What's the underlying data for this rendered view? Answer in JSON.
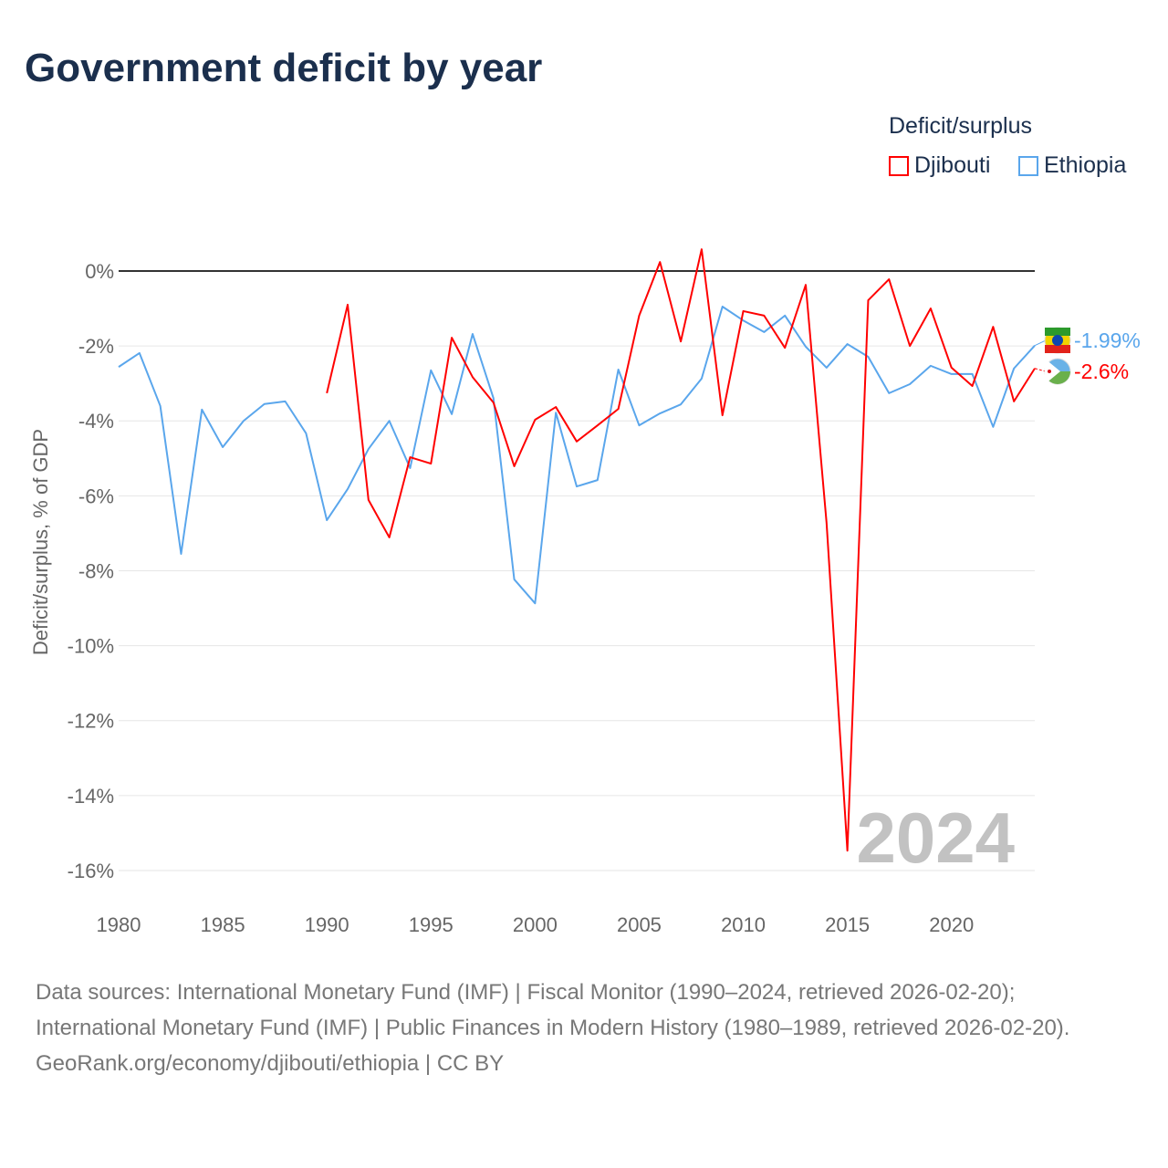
{
  "title": "Government deficit by year",
  "legend": {
    "title": "Deficit/surplus",
    "items": [
      {
        "label": "Djibouti",
        "color": "#ff0000"
      },
      {
        "label": "Ethiopia",
        "color": "#5aa6ec"
      }
    ]
  },
  "footer": {
    "sources": "Data sources: International Monetary Fund (IMF) | Fiscal Monitor (1990–2024, retrieved 2026-02-20); International Monetary Fund (IMF) | Public Finances in Modern History (1980–1989, retrieved 2026-02-20).",
    "link": "GeoRank.org/economy/djibouti/ethiopia | CC BY"
  },
  "chart_data": {
    "type": "line",
    "title": "Government deficit by year",
    "xlabel": "",
    "ylabel": "Deficit/surplus, % of GDP",
    "xlim": [
      1980,
      2024
    ],
    "ylim": [
      -16.8,
      0.8
    ],
    "xticks": [
      1980,
      1985,
      1990,
      1995,
      2000,
      2005,
      2010,
      2015,
      2020
    ],
    "yticks": [
      0,
      -2,
      -4,
      -6,
      -8,
      -10,
      -12,
      -14,
      -16
    ],
    "ytick_labels": [
      "0%",
      "-2%",
      "-4%",
      "-6%",
      "-8%",
      "-10%",
      "-12%",
      "-14%",
      "-16%"
    ],
    "year_watermark": "2024",
    "series": [
      {
        "name": "Ethiopia",
        "color": "#5aa6ec",
        "end_label": "-1.99%",
        "x_start": 1980,
        "values": [
          -2.56,
          -2.19,
          -3.6,
          -7.55,
          -3.7,
          -4.7,
          -4.0,
          -3.55,
          -3.48,
          -4.33,
          -6.65,
          -5.82,
          -4.75,
          -4.0,
          -5.26,
          -2.65,
          -3.82,
          -1.68,
          -3.39,
          -8.23,
          -8.87,
          -3.78,
          -5.75,
          -5.58,
          -2.63,
          -4.12,
          -3.8,
          -3.56,
          -2.87,
          -0.95,
          -1.32,
          -1.63,
          -1.19,
          -2.02,
          -2.58,
          -1.95,
          -2.29,
          -3.26,
          -3.02,
          -2.53,
          -2.75,
          -2.75,
          -4.16,
          -2.6,
          -1.99
        ]
      },
      {
        "name": "Djibouti",
        "color": "#ff0000",
        "end_label": "-2.6%",
        "x_start": 1990,
        "values": [
          -3.26,
          -0.9,
          -6.11,
          -7.11,
          -4.97,
          -5.14,
          -1.78,
          -2.83,
          -3.51,
          -5.21,
          -3.97,
          -3.63,
          -4.55,
          -4.12,
          -3.68,
          -1.19,
          0.24,
          -1.88,
          0.58,
          -3.85,
          -1.07,
          -1.19,
          -2.05,
          -0.37,
          -6.72,
          -15.47,
          -0.78,
          -0.22,
          -2.0,
          -1.0,
          -2.58,
          -3.07,
          -1.49,
          -3.48,
          -2.6
        ]
      }
    ]
  }
}
